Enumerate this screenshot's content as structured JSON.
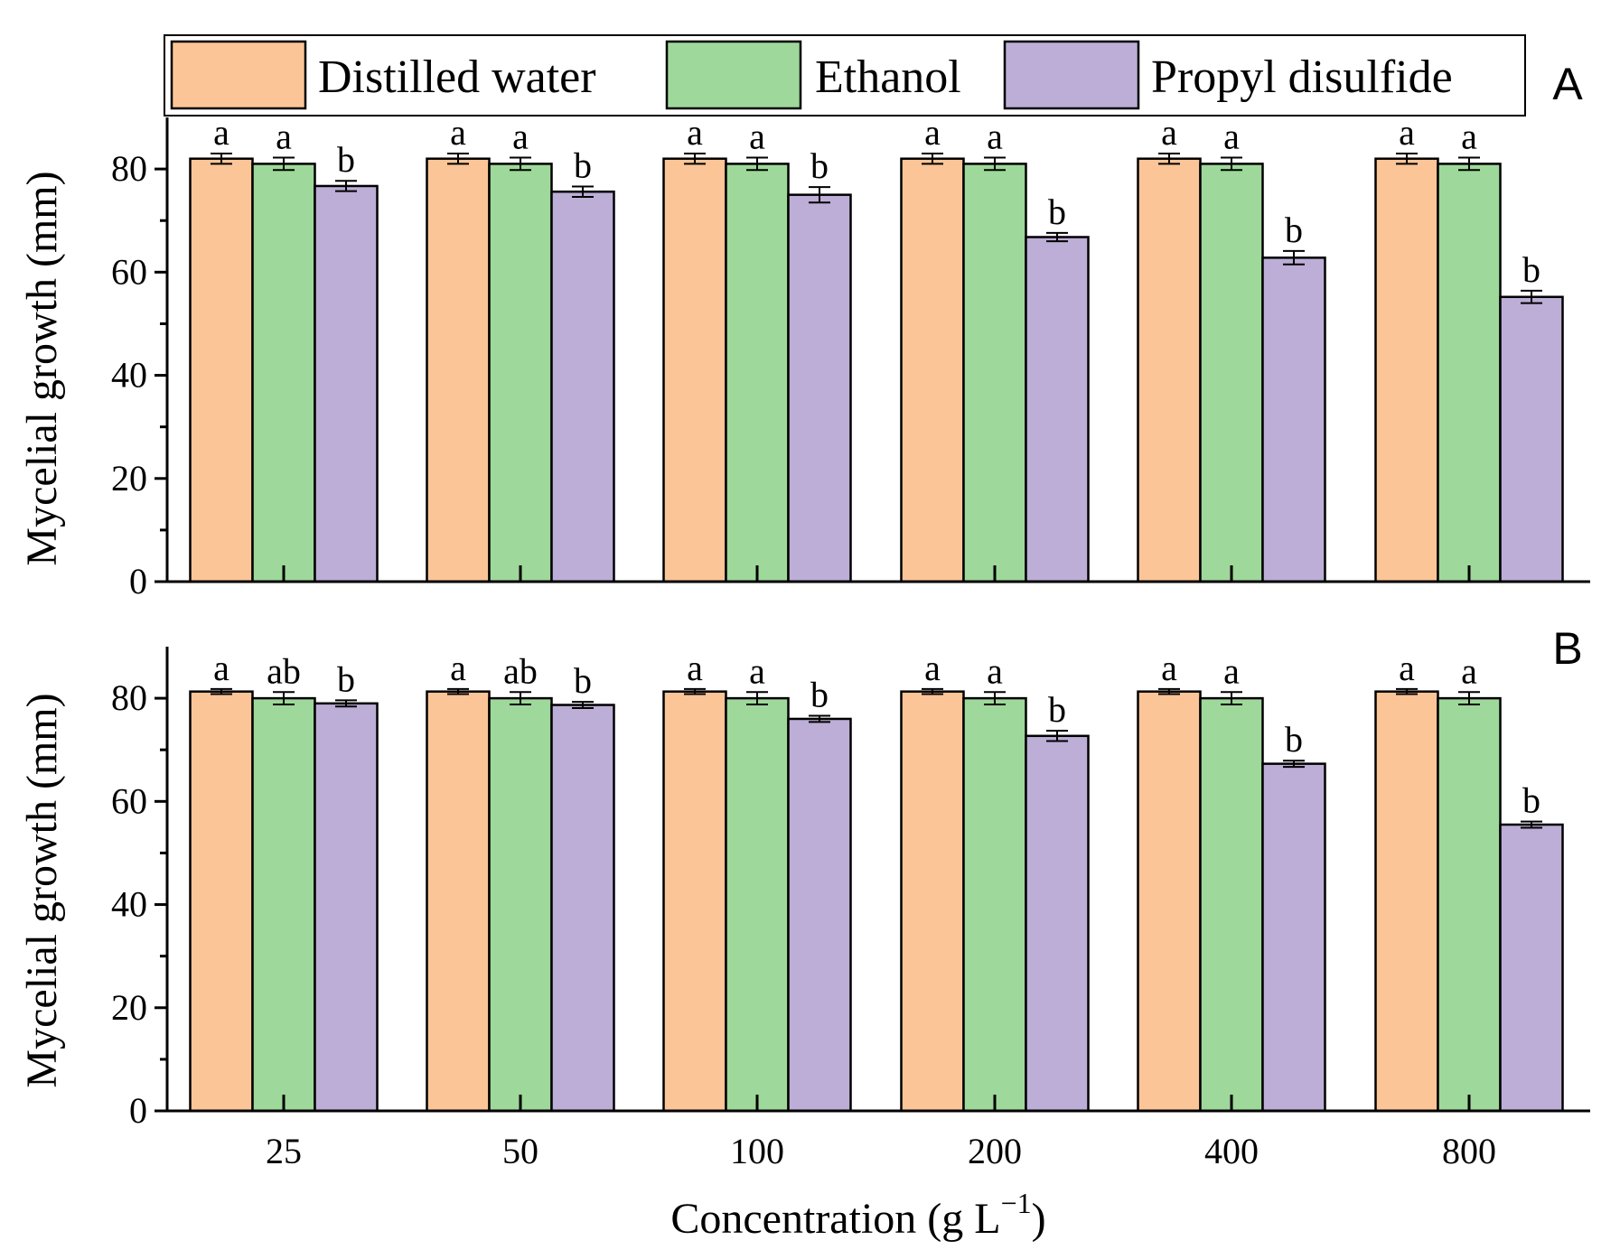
{
  "chart_data": [
    {
      "type": "bar",
      "panel": "A",
      "categories": [
        "25",
        "50",
        "100",
        "200",
        "400",
        "800"
      ],
      "series": [
        {
          "name": "Distilled water",
          "color": "#FBC597",
          "values": [
            82,
            82,
            82,
            82,
            82,
            82
          ],
          "errors": [
            1.0,
            1.0,
            1.0,
            1.0,
            1.0,
            1.0
          ],
          "labels": [
            "a",
            "a",
            "a",
            "a",
            "a",
            "a"
          ]
        },
        {
          "name": "Ethanol",
          "color": "#9ED89A",
          "values": [
            81,
            81,
            81,
            81,
            81,
            81
          ],
          "errors": [
            1.2,
            1.2,
            1.2,
            1.2,
            1.2,
            1.2
          ],
          "labels": [
            "a",
            "a",
            "a",
            "a",
            "a",
            "a"
          ]
        },
        {
          "name": "Propyl disulfide",
          "color": "#BCAED6",
          "values": [
            76.7,
            75.6,
            75.0,
            66.8,
            62.8,
            55.2
          ],
          "errors": [
            1.0,
            1.0,
            1.5,
            0.8,
            1.3,
            1.2
          ],
          "labels": [
            "b",
            "b",
            "b",
            "b",
            "b",
            "b"
          ]
        }
      ],
      "xlabel": "Concentration (g L⁻¹)",
      "ylabel": "Mycelial growth (mm)",
      "ylim": [
        0,
        90
      ],
      "yticks": [
        0,
        20,
        40,
        60,
        80
      ],
      "legend": "top"
    },
    {
      "type": "bar",
      "panel": "B",
      "categories": [
        "25",
        "50",
        "100",
        "200",
        "400",
        "800"
      ],
      "series": [
        {
          "name": "Distilled water",
          "color": "#FBC597",
          "values": [
            81.3,
            81.3,
            81.3,
            81.3,
            81.3,
            81.3
          ],
          "errors": [
            0.5,
            0.5,
            0.5,
            0.5,
            0.5,
            0.5
          ],
          "labels": [
            "a",
            "a",
            "a",
            "a",
            "a",
            "a"
          ]
        },
        {
          "name": "Ethanol",
          "color": "#9ED89A",
          "values": [
            80,
            80,
            80,
            80,
            80,
            80
          ],
          "errors": [
            1.2,
            1.2,
            1.2,
            1.2,
            1.2,
            1.2
          ],
          "labels": [
            "ab",
            "ab",
            "a",
            "a",
            "a",
            "a"
          ]
        },
        {
          "name": "Propyl disulfide",
          "color": "#BCAED6",
          "values": [
            79.0,
            78.7,
            76.0,
            72.7,
            67.3,
            55.5
          ],
          "errors": [
            0.6,
            0.6,
            0.6,
            1.0,
            0.6,
            0.6
          ],
          "labels": [
            "b",
            "b",
            "b",
            "b",
            "b",
            "b"
          ]
        }
      ],
      "xlabel": "Concentration (g L⁻¹)",
      "ylabel": "Mycelial growth (mm)",
      "ylim": [
        0,
        90
      ],
      "yticks": [
        0,
        20,
        40,
        60,
        80
      ],
      "legend": "none"
    }
  ],
  "legend": {
    "items": [
      {
        "name": "Distilled water",
        "color": "#FBC597"
      },
      {
        "name": "Ethanol",
        "color": "#9ED89A"
      },
      {
        "name": "Propyl disulfide",
        "color": "#BCAED6"
      }
    ]
  },
  "x_axis_title": "Concentration (g L",
  "x_axis_title_exponent": "−1",
  "x_axis_title_close": ")"
}
